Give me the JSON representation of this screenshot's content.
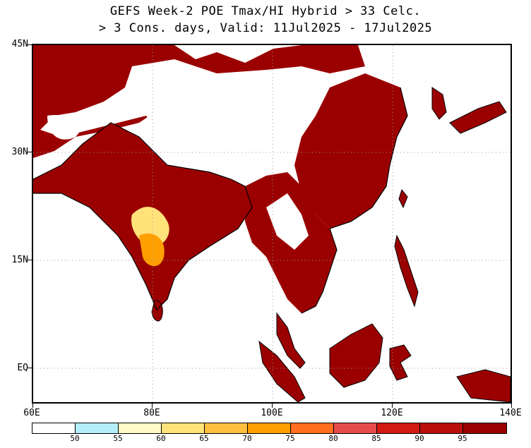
{
  "title": {
    "line1": "GEFS Week-2 POE Tmax/HI Hybrid > 33 Celc.",
    "line2": "> 3 Cons. days, Valid: 11Jul2025 - 17Jul2025"
  },
  "axes": {
    "lat_labels": [
      "45N",
      "30N",
      "15N",
      "EQ"
    ],
    "lon_labels": [
      "60E",
      "80E",
      "100E",
      "120E",
      "140E"
    ],
    "lat_values": [
      45,
      30,
      15,
      0
    ],
    "lon_values": [
      60,
      80,
      100,
      120,
      140
    ],
    "lat_range": [
      -5,
      45
    ],
    "lon_range": [
      60,
      140
    ],
    "grid": "dotted",
    "map_projection": "equirectangular"
  },
  "colorbar": {
    "labels": [
      "50",
      "55",
      "60",
      "65",
      "70",
      "75",
      "80",
      "85",
      "90",
      "95"
    ],
    "colors": [
      "#ffffff",
      "#b4eefa",
      "#fffac8",
      "#ffe27a",
      "#ffc040",
      "#ffa000",
      "#ff6e1e",
      "#e64b4b",
      "#d21a12",
      "#b80f0a",
      "#9b0000"
    ]
  },
  "colors": {
    "land_high": "#9b0000",
    "land_mid": "#c01a0a",
    "land_edge": "#ffa000",
    "ocean": "#ffffff",
    "coast": "#000000"
  }
}
